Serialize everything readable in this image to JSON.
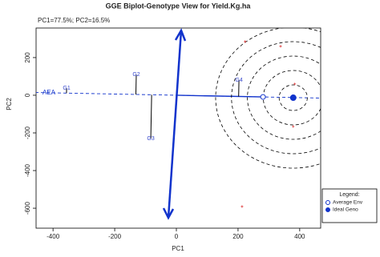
{
  "chart_data": {
    "type": "scatter",
    "title": "GGE Biplot-Genotype View for Yield.Kg.ha",
    "subtitle": "PC1=77.5%; PC2=16.5%",
    "x_label": "PC1",
    "y_label": "PC2",
    "xlim": [
      -455,
      468
    ],
    "ylim": [
      -706,
      357
    ],
    "xticks": [
      -400,
      -200,
      0,
      200,
      400
    ],
    "yticks": [
      -600,
      -400,
      -200,
      0,
      200
    ],
    "axis_label": "AEA",
    "legend_title": "Legend:",
    "genotypes": {
      "labels": [
        "G1",
        "G2",
        "G3",
        "G4"
      ],
      "x": [
        -356,
        -130,
        -83,
        203
      ],
      "y": [
        38,
        110,
        -230,
        81
      ],
      "color": "#3344cc"
    },
    "environments": {
      "x": [
        223,
        338,
        384,
        379,
        213
      ],
      "y": [
        285,
        260,
        60,
        -166,
        -591
      ],
      "color": "#dd3333"
    },
    "series": [
      {
        "name": "Average Env",
        "color": "#1133cc",
        "x": [
          281
        ],
        "values": [
          -9
        ]
      },
      {
        "name": "Ideal Geno",
        "color": "#1133cc",
        "x": [
          379
        ],
        "values": [
          -13
        ]
      }
    ]
  }
}
